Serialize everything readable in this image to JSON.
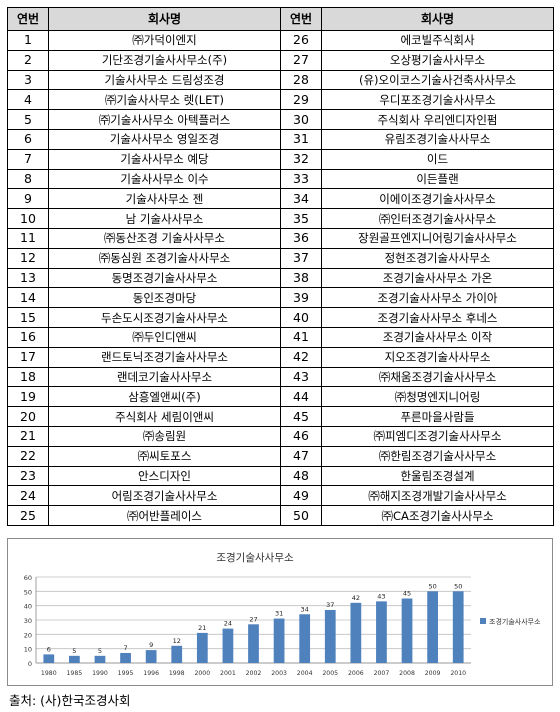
{
  "table": {
    "headers": [
      "연번",
      "회사명",
      "연번",
      "회사명"
    ],
    "rows": [
      [
        "1",
        "㈜가덕이엔지",
        "26",
        "에코빌주식회사"
      ],
      [
        "2",
        "기단조경기술사사무소(주)",
        "27",
        "오상평기술사사무소"
      ],
      [
        "3",
        "기술사사무소 드림성조경",
        "28",
        "(유)오이코스기술사건축사사무소"
      ],
      [
        "4",
        "㈜기술사사무소 렛(LET)",
        "29",
        "우디포조경기술사사무소"
      ],
      [
        "5",
        "㈜기술사사무소 아텍플러스",
        "30",
        "주식회사 우리엔디자인펌"
      ],
      [
        "6",
        "기술사사무소 영일조경",
        "31",
        "유림조경기술사사무소"
      ],
      [
        "7",
        "기술사사무소 예당",
        "32",
        "이드"
      ],
      [
        "8",
        "기술사사무소 이수",
        "33",
        "이든플랜"
      ],
      [
        "9",
        "기술사사무소 젠",
        "34",
        "이에이조경기술사사무소"
      ],
      [
        "10",
        "남 기술사사무소",
        "35",
        "㈜인터조경기술사사무소"
      ],
      [
        "11",
        "㈜동산조경 기술사사무소",
        "36",
        "장원골프엔지니어링기술사사무소"
      ],
      [
        "12",
        "㈜동심원 조경기술사사무소",
        "37",
        "정현조경기술사사무소"
      ],
      [
        "13",
        "동명조경기술사사무소",
        "38",
        "조경기술사사무소 가온"
      ],
      [
        "14",
        "동인조경마당",
        "39",
        "조경기술사사무소 가이아"
      ],
      [
        "15",
        "두손도시조경기술사사무소",
        "40",
        "조경기술사사무소 후네스"
      ],
      [
        "16",
        "㈜두인디앤씨",
        "41",
        "조경기술사사무소 이작"
      ],
      [
        "17",
        "랜드토닉조경기술사사무소",
        "42",
        "지오조경기술사사무소"
      ],
      [
        "18",
        "랜데코기술사사무소",
        "43",
        "㈜채움조경기술사사무소"
      ],
      [
        "19",
        "삼흥엘앤씨(주)",
        "44",
        "㈜청명엔지니어링"
      ],
      [
        "20",
        "주식회사 세림이앤씨",
        "45",
        "푸른마을사람들"
      ],
      [
        "21",
        "㈜송림원",
        "46",
        "㈜피엠디조경기술사사무소"
      ],
      [
        "22",
        "㈜씨토포스",
        "47",
        "㈜한림조경기술사사무소"
      ],
      [
        "23",
        "안스디자인",
        "48",
        "한울림조경설계"
      ],
      [
        "24",
        "어림조경기술사사무소",
        "49",
        "㈜해지조경개발기술사사무소"
      ],
      [
        "25",
        "㈜어반플레이스",
        "50",
        "㈜CA조경기술사사무소"
      ]
    ]
  },
  "chart_data": {
    "type": "bar",
    "title": "조경기술사사무소",
    "categories": [
      "1980",
      "1985",
      "1990",
      "1995",
      "1996",
      "1998",
      "2000",
      "2001",
      "2002",
      "2003",
      "2004",
      "2005",
      "2006",
      "2007",
      "2008",
      "2009",
      "2010"
    ],
    "series": [
      {
        "name": "조경기술사사무소",
        "values": [
          6,
          5,
          5,
          7,
          9,
          12,
          21,
          24,
          27,
          31,
          34,
          37,
          42,
          43,
          45,
          50,
          50
        ]
      }
    ],
    "ylim": [
      0,
      60
    ],
    "yticks": [
      "0",
      "10",
      "20",
      "30",
      "40",
      "50",
      "60"
    ],
    "grid": true,
    "legend_position": "right",
    "bar_color": "#4f81bd"
  },
  "source": "출처: (사)한국조경사회"
}
